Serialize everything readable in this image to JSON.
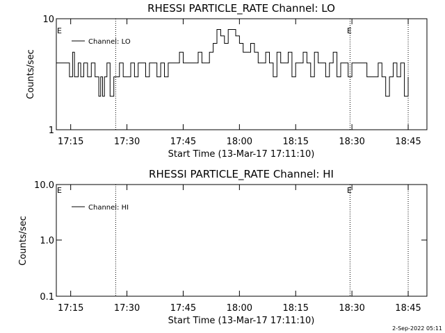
{
  "footer": "2-Sep-2022 05:11",
  "chart_data": [
    {
      "type": "line",
      "title": "RHESSI PARTICLE_RATE Channel: LO",
      "xlabel": "Start Time (13-Mar-17 17:11:10)",
      "ylabel": "Counts/sec",
      "yscale": "log",
      "ylim": [
        1,
        10
      ],
      "ytick_labels": [
        "1",
        "10"
      ],
      "ytick_values": [
        1,
        10
      ],
      "xlim": [
        "17:11:10",
        "18:50:00"
      ],
      "xtick_labels": [
        "17:15",
        "17:30",
        "17:45",
        "18:00",
        "18:15",
        "18:30",
        "18:45"
      ],
      "markers": [
        "E",
        "E"
      ],
      "dotted_lines_at": [
        "17:27:00",
        "18:29:30",
        "18:45:00"
      ],
      "series": [
        {
          "name": "Channel: LO",
          "x": [
            "17:11:10",
            "17:14:00",
            "17:14:40",
            "17:15:30",
            "17:16:00",
            "17:17:00",
            "17:17:40",
            "17:18:30",
            "17:19:30",
            "17:20:30",
            "17:21:30",
            "17:22:30",
            "17:23:00",
            "17:23:30",
            "17:24:00",
            "17:24:40",
            "17:25:30",
            "17:26:30",
            "17:27:20",
            "17:28:00",
            "17:29:00",
            "17:30:00",
            "17:31:00",
            "17:32:00",
            "17:33:00",
            "17:34:00",
            "17:35:00",
            "17:36:00",
            "17:37:00",
            "17:38:00",
            "17:39:00",
            "17:40:00",
            "17:41:00",
            "17:42:00",
            "17:43:00",
            "17:44:00",
            "17:45:00",
            "17:46:00",
            "17:47:00",
            "17:48:00",
            "17:49:00",
            "17:50:00",
            "17:51:00",
            "17:52:00",
            "17:53:00",
            "17:54:00",
            "17:55:00",
            "17:56:00",
            "17:57:00",
            "17:58:00",
            "17:59:00",
            "18:00:00",
            "18:01:00",
            "18:02:00",
            "18:03:00",
            "18:04:00",
            "18:05:00",
            "18:06:00",
            "18:07:00",
            "18:08:00",
            "18:09:00",
            "18:10:00",
            "18:11:00",
            "18:12:00",
            "18:13:00",
            "18:14:00",
            "18:15:00",
            "18:16:00",
            "18:17:00",
            "18:18:00",
            "18:19:00",
            "18:20:00",
            "18:21:00",
            "18:22:00",
            "18:23:00",
            "18:24:00",
            "18:25:00",
            "18:26:00",
            "18:27:00",
            "18:28:00",
            "18:29:00",
            "18:30:00",
            "18:31:00",
            "18:32:00",
            "18:33:00",
            "18:34:00",
            "18:35:00",
            "18:36:00",
            "18:37:00",
            "18:38:00",
            "18:39:00",
            "18:40:00",
            "18:41:00",
            "18:42:00",
            "18:43:00",
            "18:44:00",
            "18:45:00"
          ],
          "y": [
            4,
            4,
            3,
            5,
            3,
            4,
            3,
            4,
            3,
            4,
            3,
            2,
            3,
            2,
            3,
            4,
            2,
            3,
            3,
            4,
            3,
            3,
            4,
            3,
            4,
            4,
            3,
            4,
            4,
            3,
            4,
            3,
            4,
            4,
            4,
            5,
            4,
            4,
            4,
            4,
            5,
            4,
            4,
            5,
            6,
            8,
            7,
            6,
            8,
            8,
            7,
            6,
            5,
            5,
            6,
            5,
            4,
            4,
            5,
            4,
            3,
            5,
            4,
            4,
            5,
            3,
            4,
            4,
            5,
            4,
            3,
            5,
            4,
            4,
            3,
            4,
            5,
            3,
            4,
            4,
            3,
            4,
            4,
            4,
            4,
            3,
            3,
            3,
            4,
            3,
            2,
            3,
            4,
            3,
            4,
            2,
            3
          ]
        }
      ]
    },
    {
      "type": "line",
      "title": "RHESSI PARTICLE_RATE Channel: HI",
      "xlabel": "Start Time (13-Mar-17 17:11:10)",
      "ylabel": "Counts/sec",
      "yscale": "log",
      "ylim": [
        0.1,
        10
      ],
      "ytick_labels": [
        "0.1",
        "1.0",
        "10.0"
      ],
      "ytick_values": [
        0.1,
        1,
        10
      ],
      "xlim": [
        "17:11:10",
        "18:50:00"
      ],
      "xtick_labels": [
        "17:15",
        "17:30",
        "17:45",
        "18:00",
        "18:15",
        "18:30",
        "18:45"
      ],
      "markers": [
        "E",
        "E"
      ],
      "dotted_lines_at": [
        "17:27:00",
        "18:29:30",
        "18:45:00"
      ],
      "series": [
        {
          "name": "Channel: HI",
          "x": [],
          "y": []
        }
      ]
    }
  ]
}
